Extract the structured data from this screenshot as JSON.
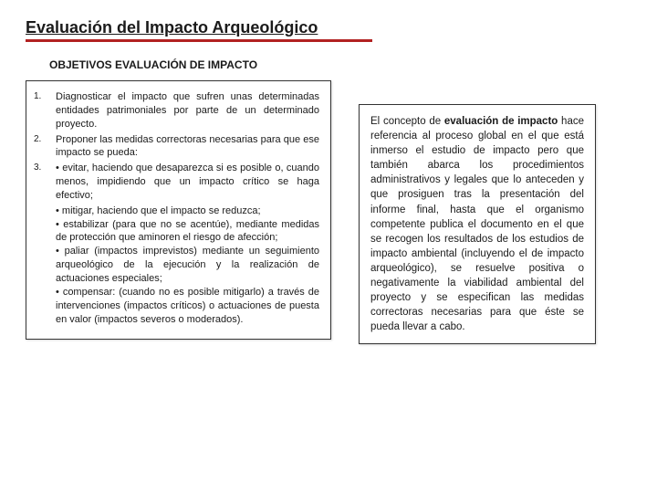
{
  "title": "Evaluación del Impacto Arqueológico",
  "subtitle": "OBJETIVOS EVALUACIÓN DE IMPACTO",
  "left": {
    "items": [
      {
        "num": "1.",
        "text": "Diagnosticar el impacto que sufren unas determinadas entidades patrimoniales por parte de un determinado proyecto."
      },
      {
        "num": "2.",
        "text": "Proponer las medidas correctoras necesarias para que ese impacto se pueda:"
      },
      {
        "num": "3.",
        "text": "        • evitar, haciendo que desaparezca si es posible o, cuando menos, impidiendo que un impacto crítico se haga efectivo;"
      }
    ],
    "bullets": [
      "• mitigar, haciendo que el impacto se reduzca;",
      "• estabilizar (para que no se acentúe), mediante medidas de protección que aminoren el riesgo de afección;",
      "• paliar (impactos imprevistos) mediante un seguimiento arqueológico de la ejecución y la realización de actuaciones especiales;",
      "• compensar: (cuando no es posible mitigarlo) a través de intervenciones (impactos críticos) o actuaciones de puesta en valor (impactos severos o moderados)."
    ]
  },
  "right": {
    "lead": "El concepto de ",
    "bold": "evaluación de impacto",
    "rest": " hace referencia al proceso global en el que está inmerso el estudio de impacto pero que también abarca los procedimientos administrativos y legales que lo anteceden y que prosiguen tras la presentación del informe final, hasta que el organismo competente publica el documento en el que se recogen los resultados de los estudios de impacto ambiental (incluyendo el de impacto arqueológico), se resuelve positiva o negativamente la viabilidad ambiental del proyecto y se especifican las medidas correctoras necesarias para que éste se pueda llevar a cabo."
  },
  "colors": {
    "accent": "#b22222",
    "text": "#1a1a1a",
    "border": "#333333",
    "background": "#ffffff"
  },
  "typography": {
    "title_fontsize": 18,
    "subtitle_fontsize": 12,
    "body_fontsize": 11,
    "right_fontsize": 11.5
  }
}
